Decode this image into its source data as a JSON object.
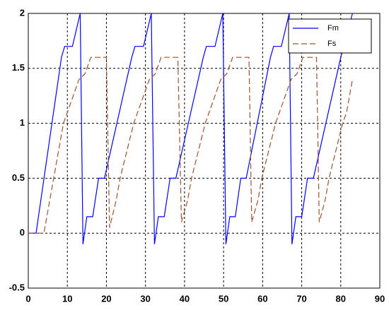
{
  "chart_data": {
    "type": "line",
    "xlim": [
      0,
      90
    ],
    "xticks": [
      0,
      10,
      20,
      30,
      40,
      50,
      60,
      70,
      80,
      90
    ],
    "ylim": [
      -0.5,
      2
    ],
    "yticks": [
      -0.5,
      0,
      0.5,
      1,
      1.5,
      2
    ],
    "grid": true,
    "legend": "top-right",
    "series": [
      {
        "name": "Fm",
        "color": "#0000ff",
        "dash": false,
        "x": [
          0,
          2,
          8.5,
          9.3,
          11.3,
          13.3,
          14,
          15,
          16.5,
          18,
          19.5,
          26.5,
          27.3,
          29.5,
          31.5,
          32.3,
          33.3,
          34.8,
          36.3,
          37.8,
          44.8,
          45.6,
          47.8,
          49.8,
          50.6,
          51.6,
          53,
          54.4,
          55.8,
          62,
          62.8,
          64.8,
          66.8,
          67.5,
          68.5,
          70,
          71.5,
          73,
          80,
          83
        ],
        "values": [
          0,
          0,
          1.6,
          1.7,
          1.7,
          2,
          -0.1,
          0.15,
          0.15,
          0.5,
          0.5,
          1.6,
          1.7,
          1.7,
          2,
          -0.1,
          0.15,
          0.15,
          0.5,
          0.5,
          1.6,
          1.7,
          1.7,
          2,
          -0.1,
          0.15,
          0.15,
          0.5,
          0.5,
          1.6,
          1.7,
          1.7,
          2,
          -0.1,
          0.15,
          0.15,
          0.5,
          0.5,
          1.6,
          2
        ]
      },
      {
        "name": "Fs",
        "color": "#a0522d",
        "dash": true,
        "x": [
          0,
          4,
          9,
          10,
          13,
          14.5,
          16,
          20,
          20.8,
          22.5,
          23.5,
          27,
          28,
          31,
          32.5,
          34,
          38.3,
          39.2,
          40.8,
          41.8,
          45.3,
          46.3,
          49.3,
          50.8,
          52.3,
          56.5,
          57.2,
          58.8,
          59.8,
          63.3,
          64.3,
          67.3,
          68.8,
          70.3,
          73.8,
          74.5,
          76,
          77,
          80.5,
          81.5,
          83
        ],
        "values": [
          0,
          0,
          1,
          1.1,
          1.4,
          1.45,
          1.6,
          1.6,
          0.05,
          0.3,
          0.5,
          1,
          1.1,
          1.4,
          1.45,
          1.6,
          1.6,
          0.1,
          0.3,
          0.5,
          1,
          1.1,
          1.4,
          1.45,
          1.6,
          1.6,
          0.1,
          0.3,
          0.5,
          1,
          1.1,
          1.4,
          1.45,
          1.6,
          1.6,
          0.1,
          0.3,
          0.5,
          1,
          1.1,
          1.4
        ]
      }
    ]
  }
}
